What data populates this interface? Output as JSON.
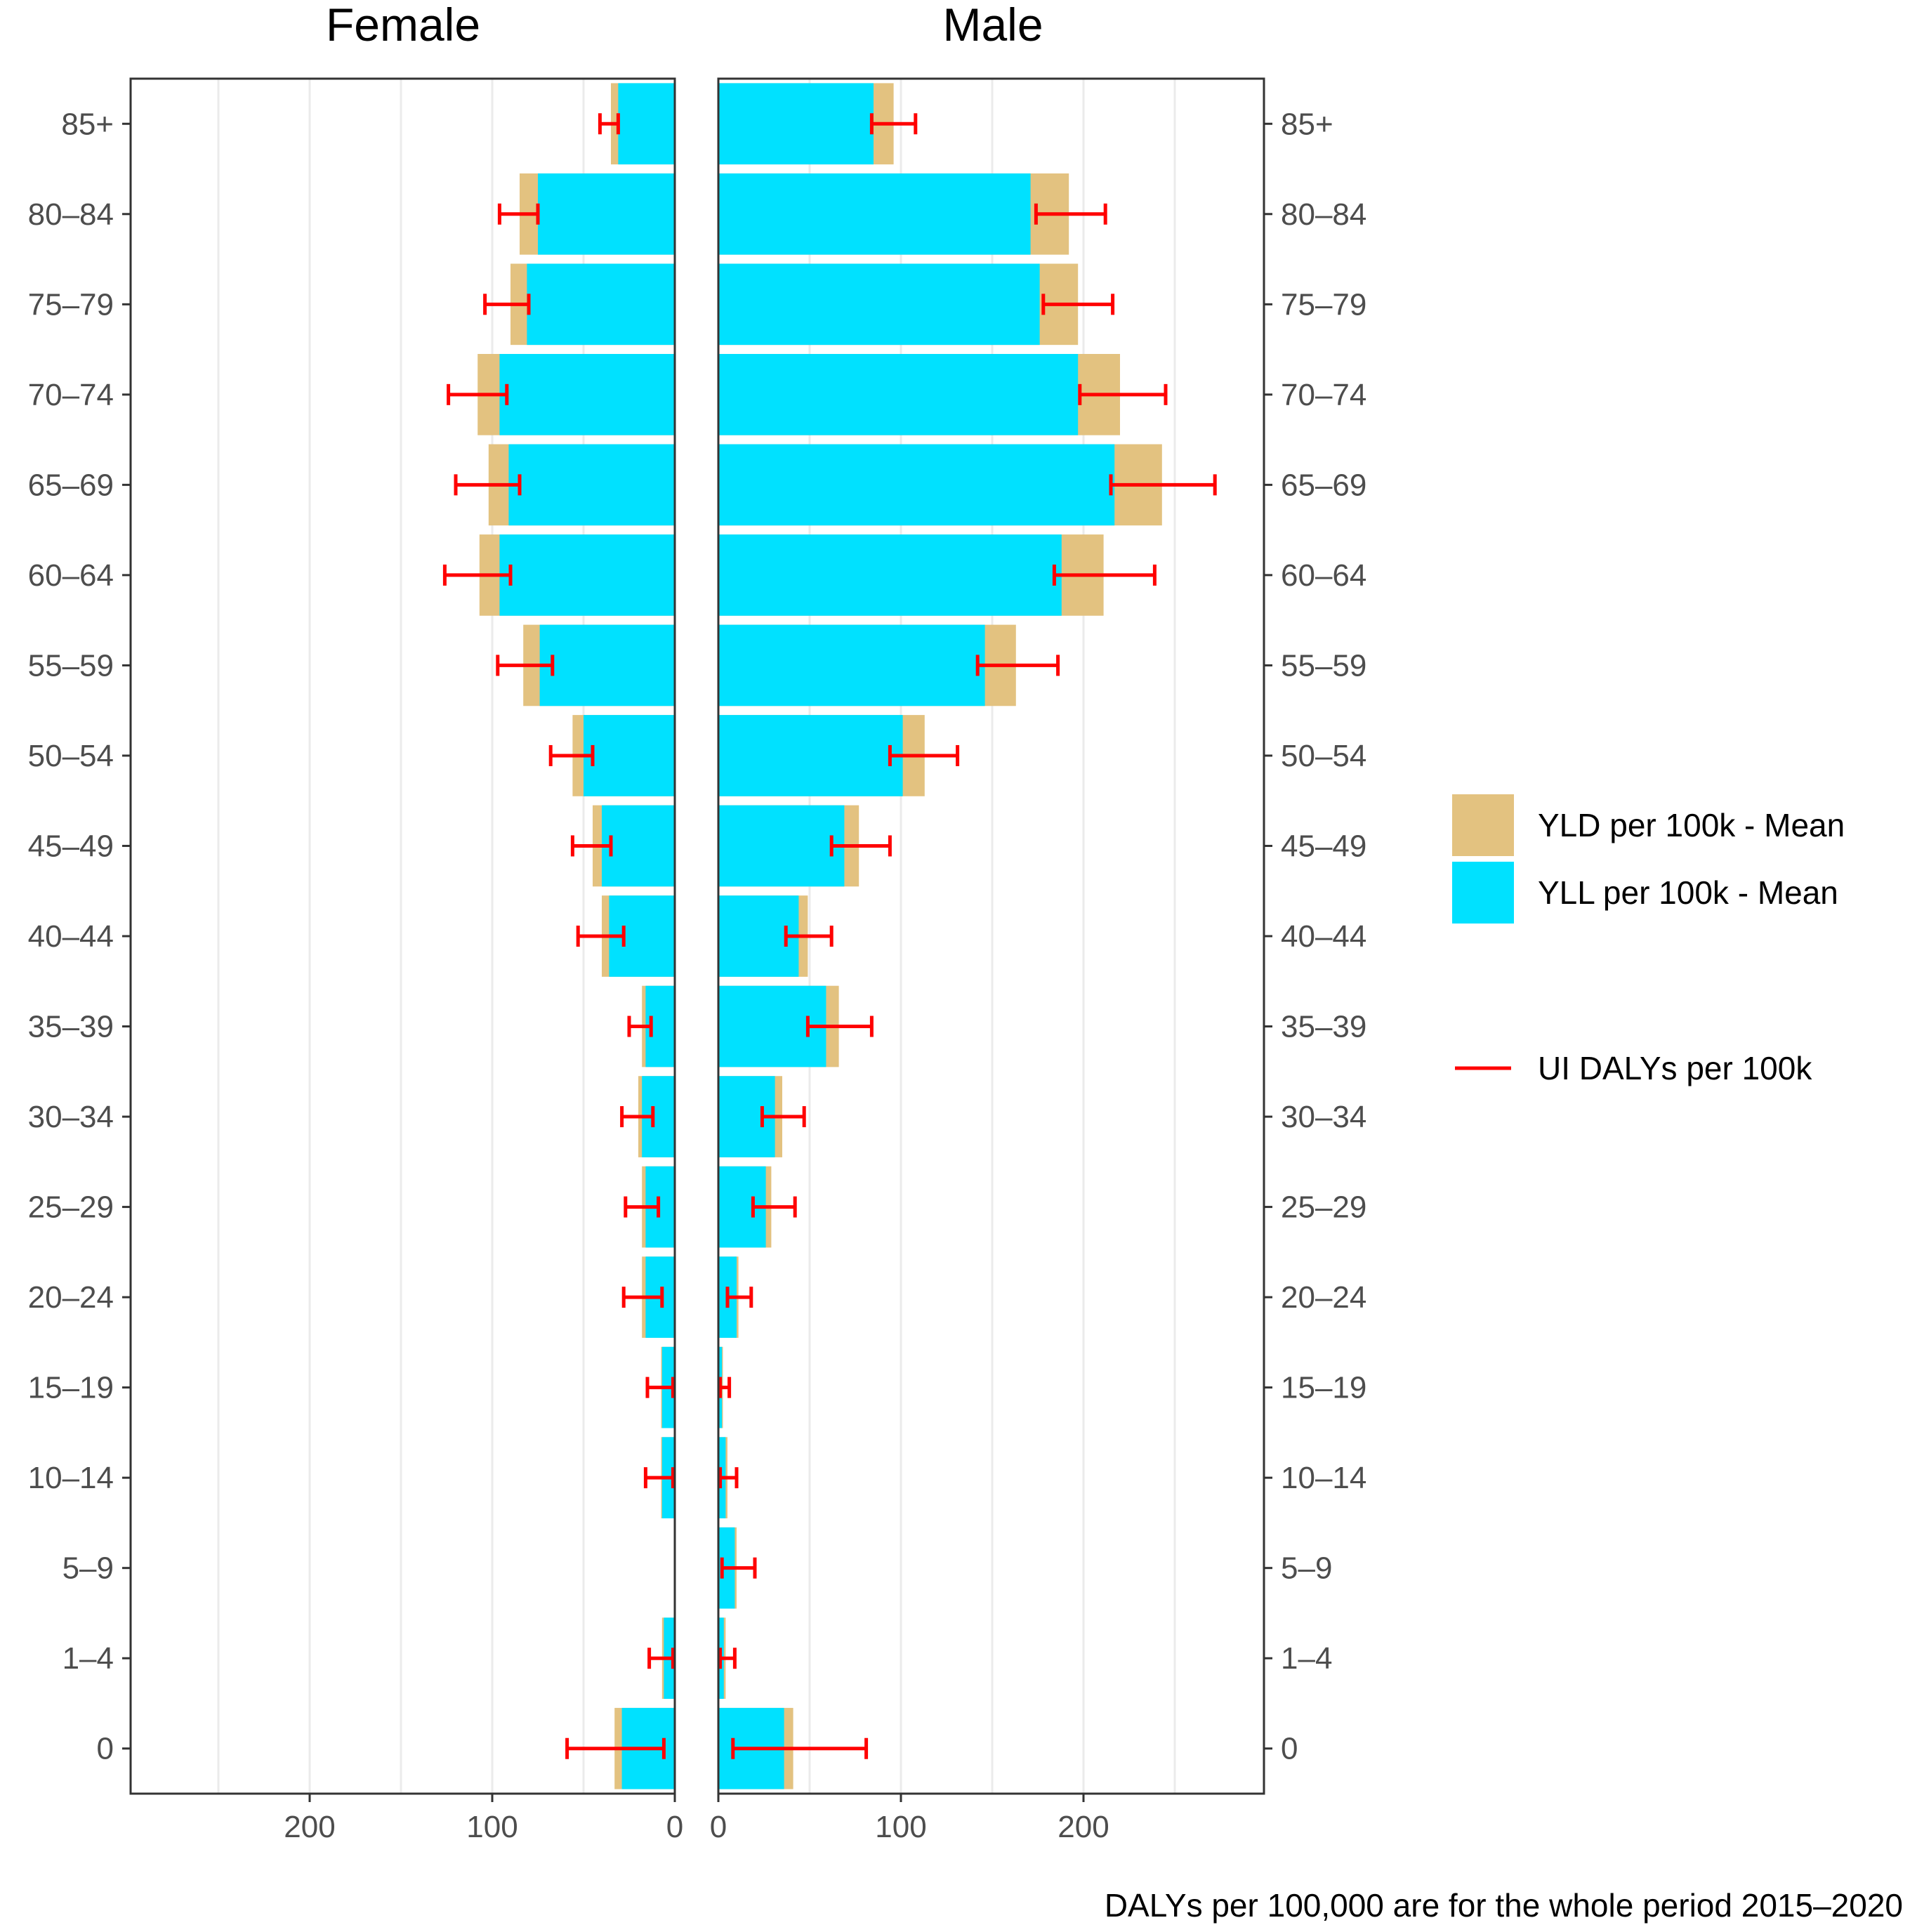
{
  "chart_data": {
    "type": "bar",
    "orientation": "horizontal",
    "layout": "population-pyramid",
    "panels": [
      "Female",
      "Male"
    ],
    "categories": [
      "85+",
      "80–84",
      "75–79",
      "70–74",
      "65–69",
      "60–64",
      "55–59",
      "50–54",
      "45–49",
      "40–44",
      "35–39",
      "30–34",
      "25–29",
      "20–24",
      "15–19",
      "10–14",
      "5–9",
      "1–4",
      "0"
    ],
    "female": {
      "yll": [
        31,
        75,
        81,
        96,
        91,
        96,
        74,
        50,
        40,
        36,
        16,
        18,
        16,
        16,
        7,
        7,
        0.5,
        6,
        29
      ],
      "yld": [
        4,
        10,
        9,
        12,
        11,
        11,
        9,
        6,
        5,
        4,
        2,
        2,
        2,
        2,
        0.5,
        0.5,
        0,
        1,
        4
      ],
      "ui_low": [
        31,
        75,
        80,
        92,
        85,
        90,
        67,
        45,
        35,
        28,
        13,
        12,
        9,
        7,
        1,
        1,
        0,
        1,
        6
      ],
      "ui_high": [
        41,
        96,
        104,
        124,
        120,
        126,
        97,
        68,
        56,
        53,
        25,
        29,
        27,
        28,
        15,
        16,
        0,
        14,
        59
      ]
    },
    "male": {
      "yll": [
        85,
        171,
        176,
        197,
        217,
        188,
        146,
        101,
        69,
        44,
        59,
        31,
        26,
        10,
        2,
        4,
        9,
        3,
        36
      ],
      "yld": [
        11,
        21,
        21,
        23,
        26,
        23,
        17,
        12,
        8,
        5,
        7,
        4,
        3,
        1,
        0.5,
        1,
        1,
        1,
        5
      ],
      "ui_low": [
        84,
        174,
        178,
        198,
        215,
        184,
        142,
        94,
        62,
        37,
        49,
        24,
        19,
        5,
        1,
        1,
        2,
        1,
        8
      ],
      "ui_high": [
        108,
        212,
        216,
        245,
        272,
        239,
        186,
        131,
        94,
        62,
        84,
        47,
        42,
        18,
        6,
        10,
        20,
        9,
        81
      ]
    },
    "female_ticks": [
      "200",
      "100",
      "0"
    ],
    "male_ticks": [
      "0",
      "100",
      "200"
    ],
    "xlim": [
      0,
      300
    ],
    "legend": {
      "position": "right",
      "items": [
        {
          "label": "YLD per 100k - Mean",
          "kind": "fill"
        },
        {
          "label": "YLL per 100k - Mean",
          "kind": "fill"
        },
        {
          "label": "UI DALYs per 100k",
          "kind": "line"
        }
      ]
    },
    "colors": {
      "yld": "#e3c280",
      "yll": "#00e1ff",
      "ui": "#ff0000",
      "grid": "#ebebeb",
      "border": "#333333"
    },
    "caption": "DALYs per 100,000 are for the whole period 2015–2020",
    "grid": true
  }
}
